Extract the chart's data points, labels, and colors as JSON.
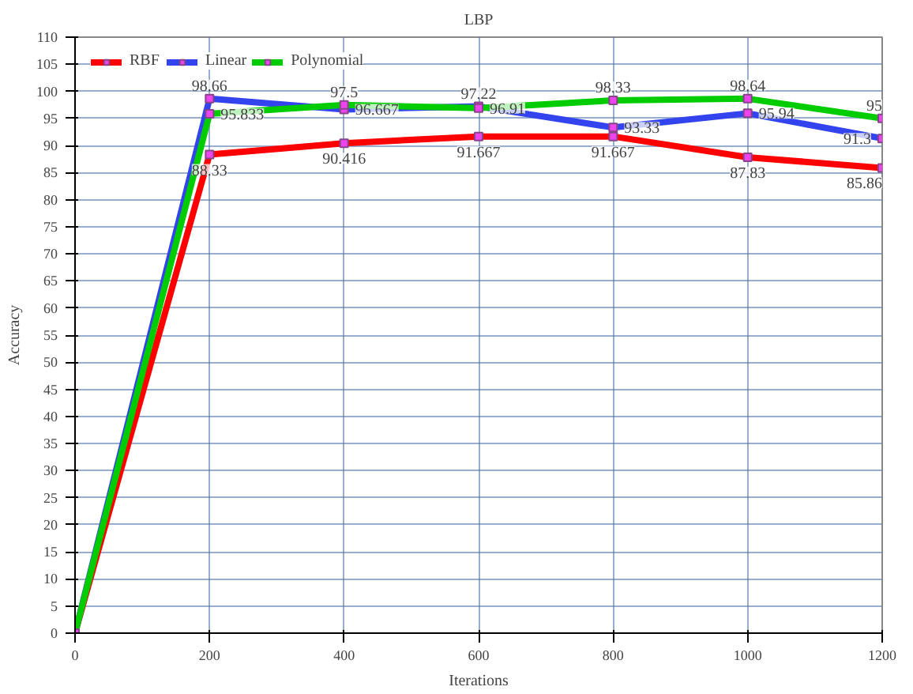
{
  "chart_data": {
    "type": "line",
    "title": "LBP",
    "xlabel": "Iterations",
    "ylabel": "Accuracy",
    "x": [
      0,
      200,
      400,
      600,
      800,
      1000,
      1200
    ],
    "series": [
      {
        "name": "RBF",
        "color": "#ff0000",
        "values": [
          0,
          88.33,
          90.416,
          91.667,
          91.667,
          87.83,
          85.86
        ],
        "value_labels": [
          null,
          "88.33",
          "90.416",
          "91.667",
          "91.667",
          "87.83",
          "85.86"
        ]
      },
      {
        "name": "Linear",
        "color": "#3344ee",
        "values": [
          0,
          98.66,
          96.667,
          97.22,
          93.33,
          95.94,
          91.3
        ],
        "value_labels": [
          null,
          "98.66",
          "96.667",
          "97.22",
          "93.33",
          "95.94",
          "91.3"
        ]
      },
      {
        "name": "Polynomial",
        "color": "#00cc00",
        "values": [
          0,
          95.833,
          97.5,
          96.91,
          98.33,
          98.64,
          95
        ],
        "value_labels": [
          null,
          "95.833",
          "97.5",
          "96.91",
          "98.33",
          "98.64",
          "95"
        ]
      }
    ],
    "xlim": [
      0,
      1200
    ],
    "xticks": [
      0,
      200,
      400,
      600,
      800,
      1000,
      1200
    ],
    "ylim": [
      0,
      110
    ],
    "yticks": [
      0,
      5,
      10,
      15,
      20,
      25,
      30,
      35,
      40,
      45,
      50,
      55,
      60,
      65,
      70,
      75,
      80,
      85,
      90,
      95,
      100,
      105,
      110
    ],
    "grid": true,
    "legend": "top left",
    "marker": "square",
    "line_style": "solid"
  }
}
